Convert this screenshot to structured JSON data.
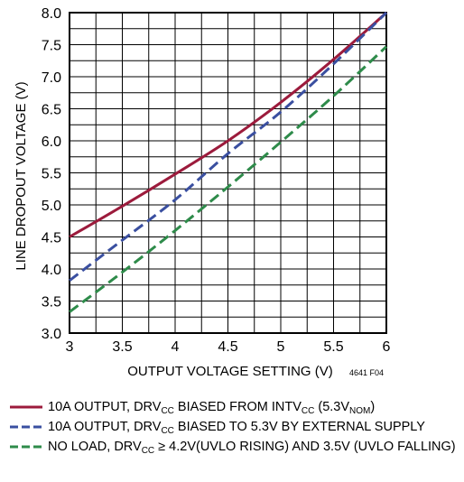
{
  "chart_data": {
    "type": "line",
    "xlabel": "OUTPUT VOLTAGE SETTING (V)",
    "ylabel": "LINE DROPOUT VOLTAGE (V)",
    "figure_id": "4641 F04",
    "xlim": [
      3,
      6
    ],
    "ylim": [
      3.0,
      8.0
    ],
    "x_ticks": [
      "3",
      "3.5",
      "4",
      "4.5",
      "5",
      "5.5",
      "6"
    ],
    "y_ticks": [
      "3.0",
      "3.5",
      "4.0",
      "4.5",
      "5.0",
      "5.5",
      "6.0",
      "6.5",
      "7.0",
      "7.5",
      "8.0"
    ],
    "grid": true,
    "x_minor_step": 0.25,
    "y_minor_step": 0.25,
    "series": [
      {
        "legend_segments": [
          {
            "text": "10A OUTPUT, DRV"
          },
          {
            "text": "CC",
            "sub": true
          },
          {
            "text": " BIASED FROM INTV"
          },
          {
            "text": "CC",
            "sub": true
          },
          {
            "text": " (5.3V"
          },
          {
            "text": "NOM",
            "sub": true
          },
          {
            "text": ")"
          }
        ],
        "color": "#9c1b3c",
        "dash": "solid",
        "x": [
          3.0,
          3.5,
          4.0,
          4.5,
          5.0,
          5.5,
          6.0
        ],
        "y": [
          4.5,
          4.98,
          5.48,
          6.0,
          6.6,
          7.27,
          8.0
        ]
      },
      {
        "legend_segments": [
          {
            "text": "10A OUTPUT, DRV"
          },
          {
            "text": "CC",
            "sub": true
          },
          {
            "text": " BIASED TO 5.3V BY EXTERNAL SUPPLY"
          }
        ],
        "color": "#3a4fa0",
        "dash": "dashed",
        "x": [
          3.0,
          3.5,
          4.0,
          4.5,
          5.0,
          5.5,
          6.0
        ],
        "y": [
          3.82,
          4.45,
          5.08,
          5.8,
          6.45,
          7.2,
          8.0
        ]
      },
      {
        "legend_segments": [
          {
            "text": "NO LOAD, DRV"
          },
          {
            "text": "CC",
            "sub": true
          },
          {
            "text": " ≥ 4.2V(UVLO RISING) AND 3.5V (UVLO FALLING)"
          }
        ],
        "color": "#2e8b4a",
        "dash": "dashed",
        "x": [
          3.0,
          3.5,
          4.0,
          4.5,
          5.0,
          5.5,
          6.0
        ],
        "y": [
          3.33,
          3.95,
          4.6,
          5.28,
          5.98,
          6.7,
          7.47
        ]
      }
    ]
  }
}
